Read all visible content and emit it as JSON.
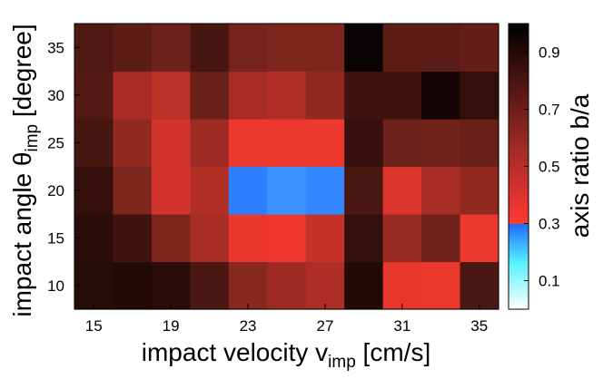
{
  "chart_data": {
    "type": "heatmap",
    "xlabel": {
      "main": "impact velocity v",
      "sub": "imp",
      "tail": " [cm/s]"
    },
    "ylabel": {
      "main": "impact angle θ",
      "sub": "imp",
      "tail": " [degree]"
    },
    "colorbar_label": "axis ratio b/a",
    "x_ticks": [
      "15",
      "19",
      "23",
      "27",
      "31",
      "35"
    ],
    "y_ticks": [
      "10",
      "15",
      "20",
      "25",
      "30",
      "35"
    ],
    "colorbar_ticks": [
      "0.1",
      "0.3",
      "0.5",
      "0.7",
      "0.9"
    ],
    "color_range": [
      0,
      1
    ],
    "x": [
      14,
      16,
      18,
      20,
      22,
      24,
      26,
      28,
      30,
      32,
      34,
      36
    ],
    "y": [
      10,
      15,
      20,
      25,
      30,
      35
    ],
    "values": [
      [
        0.91,
        0.92,
        0.9,
        0.82,
        0.68,
        0.64,
        0.61,
        0.92,
        0.47,
        0.46,
        0.82
      ],
      [
        0.9,
        0.85,
        0.7,
        0.62,
        0.48,
        0.44,
        0.56,
        0.88,
        0.65,
        0.73,
        0.45
      ],
      [
        0.87,
        0.7,
        0.54,
        0.6,
        0.28,
        0.26,
        0.27,
        0.82,
        0.52,
        0.62,
        0.66
      ],
      [
        0.83,
        0.66,
        0.54,
        0.64,
        0.45,
        0.45,
        0.45,
        0.87,
        0.74,
        0.73,
        0.75
      ],
      [
        0.8,
        0.62,
        0.58,
        0.75,
        0.62,
        0.6,
        0.66,
        0.85,
        0.85,
        0.95,
        0.88
      ],
      [
        0.81,
        0.78,
        0.74,
        0.83,
        0.72,
        0.7,
        0.7,
        0.98,
        0.78,
        0.78,
        0.76
      ]
    ]
  }
}
